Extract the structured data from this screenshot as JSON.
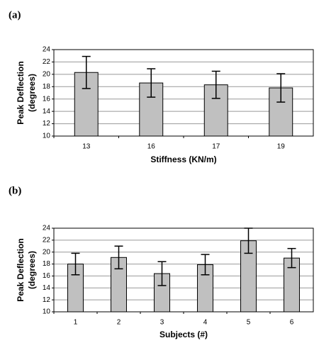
{
  "chart_data": [
    {
      "type": "bar",
      "panel_label": "(a)",
      "ylabel": [
        "Peak Deflection",
        "(degrees)"
      ],
      "xlabel": "Stiffness (KN/m)",
      "categories": [
        "13",
        "16",
        "17",
        "19"
      ],
      "values": [
        20.3,
        18.6,
        18.3,
        17.8
      ],
      "errors": [
        2.6,
        2.3,
        2.2,
        2.3
      ],
      "color": "#c0c0c0",
      "ylim": [
        10,
        24
      ],
      "yticks": [
        10,
        12,
        14,
        16,
        18,
        20,
        22,
        24
      ],
      "grid": true
    },
    {
      "type": "bar",
      "panel_label": "(b)",
      "ylabel": [
        "Peak Deflection",
        "(degrees)"
      ],
      "xlabel": "Subjects (#)",
      "categories": [
        "1",
        "2",
        "3",
        "4",
        "5",
        "6"
      ],
      "values": [
        18.0,
        19.1,
        16.4,
        17.9,
        21.9,
        19.0
      ],
      "errors": [
        1.8,
        1.9,
        2.0,
        1.7,
        2.1,
        1.6
      ],
      "color": "#c0c0c0",
      "ylim": [
        10,
        24
      ],
      "yticks": [
        10,
        12,
        14,
        16,
        18,
        20,
        22,
        24
      ],
      "grid": true
    }
  ]
}
